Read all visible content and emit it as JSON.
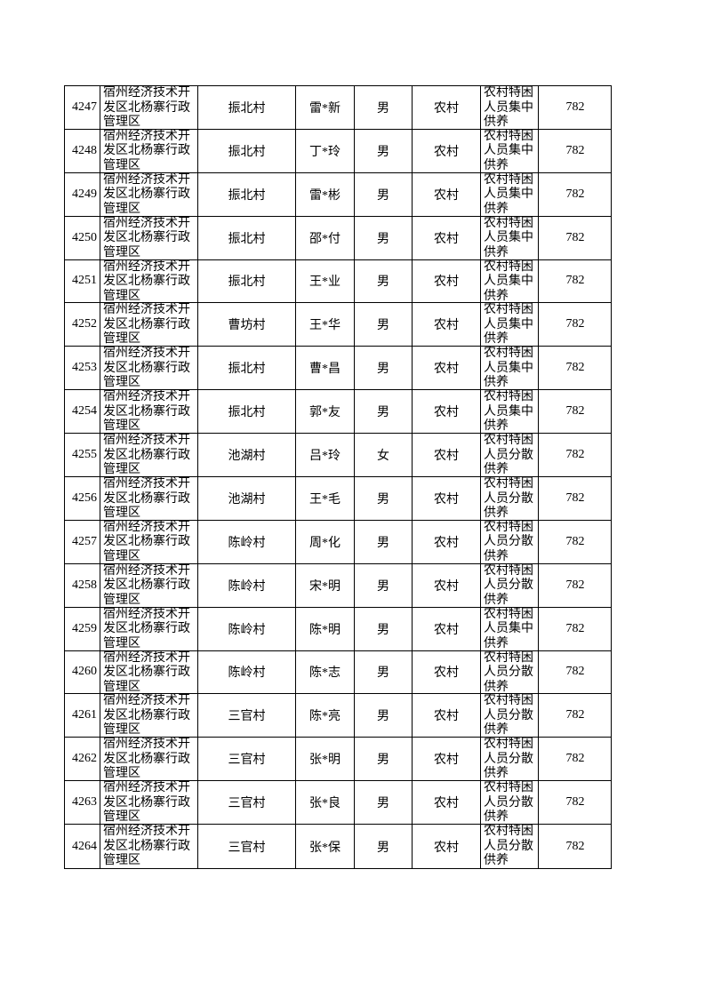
{
  "table": {
    "rows": [
      [
        "4247",
        "宿州经济技术开发区北杨寨行政管理区",
        "振北村",
        "雷*新",
        "男",
        "农村",
        "农村特困人员集中供养",
        "782"
      ],
      [
        "4248",
        "宿州经济技术开发区北杨寨行政管理区",
        "振北村",
        "丁*玲",
        "男",
        "农村",
        "农村特困人员集中供养",
        "782"
      ],
      [
        "4249",
        "宿州经济技术开发区北杨寨行政管理区",
        "振北村",
        "雷*彬",
        "男",
        "农村",
        "农村特困人员集中供养",
        "782"
      ],
      [
        "4250",
        "宿州经济技术开发区北杨寨行政管理区",
        "振北村",
        "邵*付",
        "男",
        "农村",
        "农村特困人员集中供养",
        "782"
      ],
      [
        "4251",
        "宿州经济技术开发区北杨寨行政管理区",
        "振北村",
        "王*业",
        "男",
        "农村",
        "农村特困人员集中供养",
        "782"
      ],
      [
        "4252",
        "宿州经济技术开发区北杨寨行政管理区",
        "曹坊村",
        "王*华",
        "男",
        "农村",
        "农村特困人员集中供养",
        "782"
      ],
      [
        "4253",
        "宿州经济技术开发区北杨寨行政管理区",
        "振北村",
        "曹*昌",
        "男",
        "农村",
        "农村特困人员集中供养",
        "782"
      ],
      [
        "4254",
        "宿州经济技术开发区北杨寨行政管理区",
        "振北村",
        "郭*友",
        "男",
        "农村",
        "农村特困人员集中供养",
        "782"
      ],
      [
        "4255",
        "宿州经济技术开发区北杨寨行政管理区",
        "池湖村",
        "吕*玲",
        "女",
        "农村",
        "农村特困人员分散供养",
        "782"
      ],
      [
        "4256",
        "宿州经济技术开发区北杨寨行政管理区",
        "池湖村",
        "王*毛",
        "男",
        "农村",
        "农村特困人员分散供养",
        "782"
      ],
      [
        "4257",
        "宿州经济技术开发区北杨寨行政管理区",
        "陈岭村",
        "周*化",
        "男",
        "农村",
        "农村特困人员分散供养",
        "782"
      ],
      [
        "4258",
        "宿州经济技术开发区北杨寨行政管理区",
        "陈岭村",
        "宋*明",
        "男",
        "农村",
        "农村特困人员分散供养",
        "782"
      ],
      [
        "4259",
        "宿州经济技术开发区北杨寨行政管理区",
        "陈岭村",
        "陈*明",
        "男",
        "农村",
        "农村特困人员集中供养",
        "782"
      ],
      [
        "4260",
        "宿州经济技术开发区北杨寨行政管理区",
        "陈岭村",
        "陈*志",
        "男",
        "农村",
        "农村特困人员分散供养",
        "782"
      ],
      [
        "4261",
        "宿州经济技术开发区北杨寨行政管理区",
        "三官村",
        "陈*亮",
        "男",
        "农村",
        "农村特困人员分散供养",
        "782"
      ],
      [
        "4262",
        "宿州经济技术开发区北杨寨行政管理区",
        "三官村",
        "张*明",
        "男",
        "农村",
        "农村特困人员分散供养",
        "782"
      ],
      [
        "4263",
        "宿州经济技术开发区北杨寨行政管理区",
        "三官村",
        "张*良",
        "男",
        "农村",
        "农村特困人员分散供养",
        "782"
      ],
      [
        "4264",
        "宿州经济技术开发区北杨寨行政管理区",
        "三官村",
        "张*保",
        "男",
        "农村",
        "农村特困人员分散供养",
        "782"
      ]
    ]
  }
}
